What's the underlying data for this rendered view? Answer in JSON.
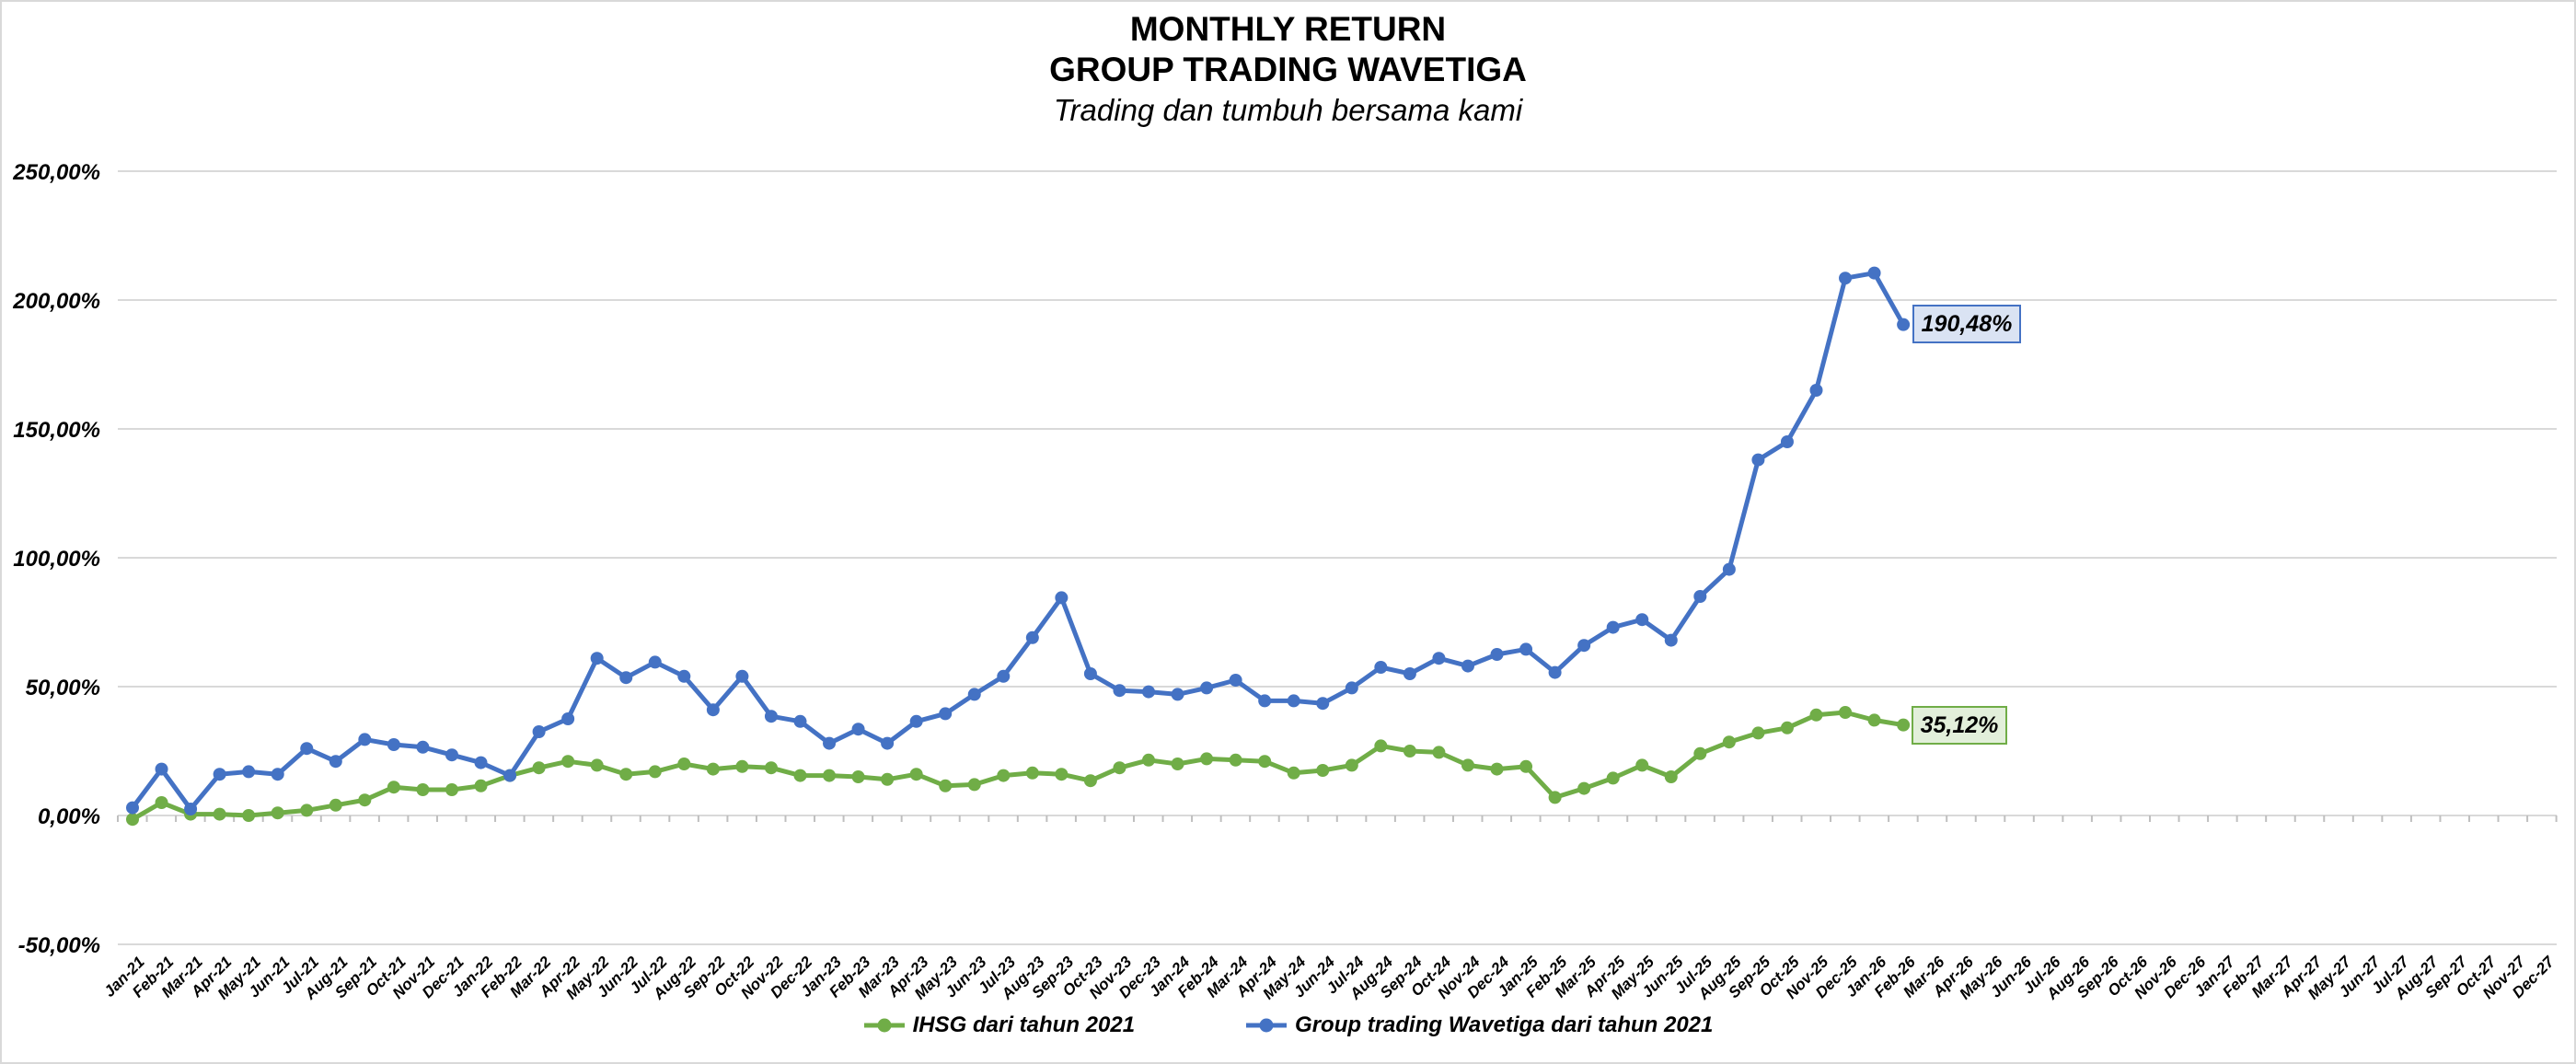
{
  "header": {
    "title_line1": "MONTHLY RETURN",
    "title_line2": "GROUP TRADING WAVETIGA",
    "subtitle": "Trading dan tumbuh bersama kami"
  },
  "colors": {
    "ihsg": "#70AD47",
    "wavetiga": "#4472C4",
    "gridline": "#D9D9D9",
    "axis_tick": "#BFBFBF",
    "ihsg_label_bg": "#E2EFDA",
    "wavetiga_label_bg": "#DAE3F3",
    "text": "#000000"
  },
  "chart_data": {
    "type": "line",
    "title": "MONTHLY RETURN GROUP TRADING WAVETIGA",
    "subtitle": "Trading dan tumbuh bersama kami",
    "grid": true,
    "legend_position": "bottom",
    "y_axis": {
      "min": -50,
      "max": 250,
      "ticks": [
        250,
        200,
        150,
        100,
        50,
        0,
        -50
      ],
      "tick_labels": [
        "250,00%",
        "200,00%",
        "150,00%",
        "100,00%",
        "50,00%",
        "0,00%",
        "-50,00%"
      ]
    },
    "categories": [
      "Jan-21",
      "Feb-21",
      "Mar-21",
      "Apr-21",
      "May-21",
      "Jun-21",
      "Jul-21",
      "Aug-21",
      "Sep-21",
      "Oct-21",
      "Nov-21",
      "Dec-21",
      "Jan-22",
      "Feb-22",
      "Mar-22",
      "Apr-22",
      "May-22",
      "Jun-22",
      "Jul-22",
      "Aug-22",
      "Sep-22",
      "Oct-22",
      "Nov-22",
      "Dec-22",
      "Jan-23",
      "Feb-23",
      "Mar-23",
      "Apr-23",
      "May-23",
      "Jun-23",
      "Jul-23",
      "Aug-23",
      "Sep-23",
      "Oct-23",
      "Nov-23",
      "Dec-23",
      "Jan-24",
      "Feb-24",
      "Mar-24",
      "Apr-24",
      "May-24",
      "Jun-24",
      "Jul-24",
      "Aug-24",
      "Sep-24",
      "Oct-24",
      "Nov-24",
      "Dec-24",
      "Jan-25",
      "Feb-25",
      "Mar-25",
      "Apr-25",
      "May-25",
      "Jun-25",
      "Jul-25",
      "Aug-25",
      "Sep-25",
      "Oct-25",
      "Nov-25",
      "Dec-25",
      "Jan-26",
      "Feb-26",
      "Mar-26",
      "Apr-26",
      "May-26",
      "Jun-26",
      "Jul-26",
      "Aug-26",
      "Sep-26",
      "Oct-26",
      "Nov-26",
      "Dec-26",
      "Jan-27",
      "Feb-27",
      "Mar-27",
      "Apr-27",
      "May-27",
      "Jun-27",
      "Jul-27",
      "Aug-27",
      "Sep-27",
      "Oct-27",
      "Nov-27",
      "Dec-27"
    ],
    "series": [
      {
        "name": "IHSG dari tahun 2021",
        "color": "#70AD47",
        "end_label": "35,12%",
        "values": [
          -1.5,
          5,
          0.5,
          0.5,
          0,
          1,
          2,
          4,
          6,
          11,
          10,
          10,
          11.5,
          15.5,
          18.5,
          21,
          19.5,
          16,
          17,
          20,
          18,
          19,
          18.5,
          15.5,
          15.5,
          15,
          14,
          16,
          11.5,
          12,
          15.5,
          16.5,
          16,
          13.5,
          18.5,
          21.5,
          20,
          22,
          21.5,
          21,
          16.5,
          17.5,
          19.5,
          27,
          25,
          24.5,
          19.5,
          18,
          19,
          7,
          10.5,
          14.5,
          19.5,
          15,
          24,
          28.5,
          32,
          34,
          39,
          40,
          37,
          35.12
        ]
      },
      {
        "name": "Group trading Wavetiga dari tahun 2021",
        "color": "#4472C4",
        "end_label": "190,48%",
        "values": [
          3,
          18,
          2.5,
          16,
          17,
          16,
          26,
          21,
          29.5,
          27.5,
          26.5,
          23.5,
          20.5,
          15.5,
          32.5,
          37.5,
          61,
          53.5,
          59.5,
          54,
          41,
          54,
          38.5,
          36.5,
          28,
          33.5,
          28,
          36.5,
          39.5,
          47,
          54,
          69,
          84.5,
          55,
          48.5,
          48,
          47,
          49.5,
          52.5,
          44.5,
          44.5,
          43.5,
          49.5,
          57.5,
          55,
          61,
          58,
          62.5,
          64.5,
          55.5,
          66,
          73,
          76,
          68,
          85,
          95.5,
          138,
          145,
          165,
          208.5,
          210.5,
          190.48
        ]
      }
    ]
  }
}
